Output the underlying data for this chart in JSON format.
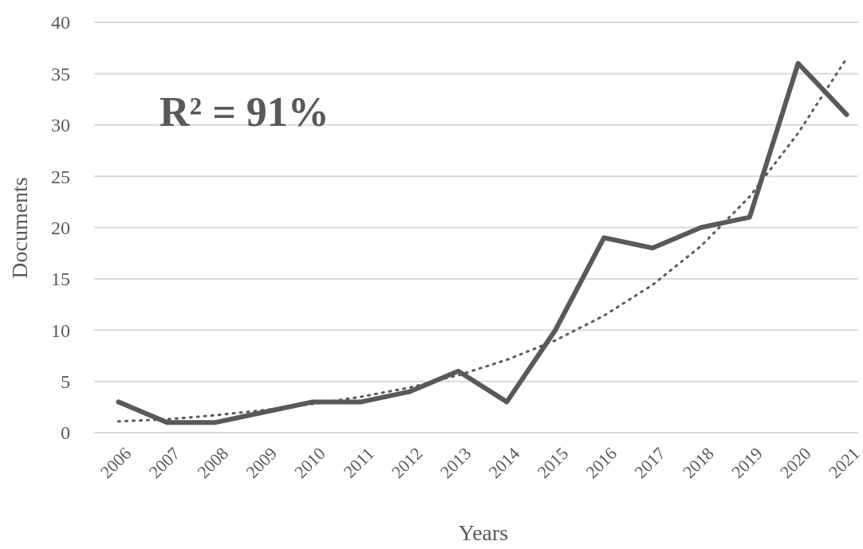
{
  "chart_data": {
    "type": "line",
    "xlabel": "Years",
    "ylabel": "Documents",
    "categories": [
      "2006",
      "2007",
      "2008",
      "2009",
      "2010",
      "2011",
      "2012",
      "2013",
      "2014",
      "2015",
      "2016",
      "2017",
      "2018",
      "2019",
      "2020",
      "2021"
    ],
    "ylim": [
      0,
      40
    ],
    "yticks": [
      0,
      5,
      10,
      15,
      20,
      25,
      30,
      35,
      40
    ],
    "grid": "y",
    "annotations": [
      "R² = 91%"
    ],
    "series": [
      {
        "color": "#595959",
        "line_style": "solid",
        "values": [
          3,
          1,
          1,
          2,
          3,
          3,
          4,
          6,
          3,
          10,
          19,
          18,
          20,
          21,
          36,
          31
        ]
      },
      {
        "type": "line",
        "color": "#595959",
        "line_style": "dotted",
        "values": [
          1.1,
          1.3,
          1.7,
          2.2,
          2.8,
          3.5,
          4.4,
          5.6,
          7.1,
          9.0,
          11.4,
          14.4,
          18.2,
          23.0,
          29.2,
          36.5
        ]
      }
    ]
  }
}
